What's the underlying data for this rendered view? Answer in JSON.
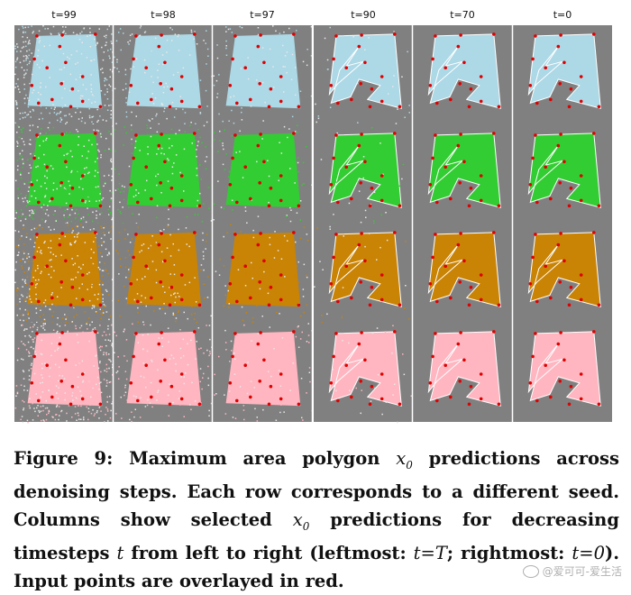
{
  "columns": [
    {
      "label": "t=99",
      "noise": 0.55,
      "shape": 0
    },
    {
      "label": "t=98",
      "noise": 0.22,
      "shape": 0
    },
    {
      "label": "t=97",
      "noise": 0.12,
      "shape": 0.25
    },
    {
      "label": "t=90",
      "noise": 0.04,
      "shape": 0.55
    },
    {
      "label": "t=70",
      "noise": 0.0,
      "shape": 0.9
    },
    {
      "label": "t=0",
      "noise": 0.0,
      "shape": 1
    }
  ],
  "rows": [
    {
      "seed_color": "#add8e6"
    },
    {
      "seed_color": "#32cd32"
    },
    {
      "seed_color": "#c98305"
    },
    {
      "seed_color": "#ffb6c1"
    }
  ],
  "colors": {
    "background": "#808080",
    "points": "#e00000",
    "edges": "#ffffff"
  },
  "caption": {
    "label": "Figure 9:",
    "part1": " Maximum area polygon ",
    "x0": "x",
    "x0_sub": "0",
    "part2": " predictions across denoising steps. Each row corresponds to a different seed. Columns show selected ",
    "part3": " predictions for decreasing timesteps ",
    "t": "t",
    "part4": " from left to right (leftmost: ",
    "t_eq_T": "t=T",
    "part5": "; rightmost: ",
    "t_eq_0": "t=0",
    "part6": "). Input points are overlayed in red."
  },
  "watermark": "@爱可可-爱生活"
}
